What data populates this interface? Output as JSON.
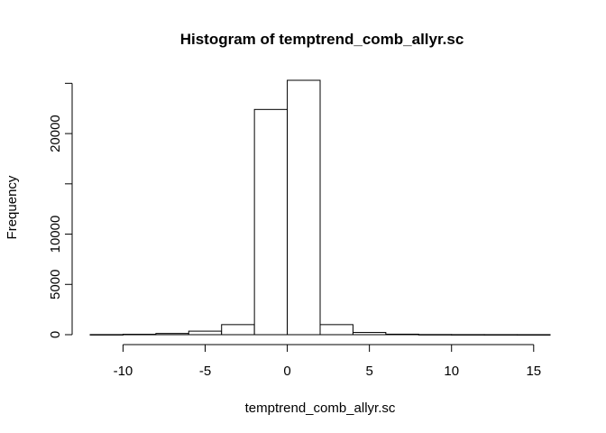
{
  "chart_data": {
    "type": "bar",
    "title": "Histogram of temptrend_comb_allyr.sc",
    "xlabel": "temptrend_comb_allyr.sc",
    "ylabel": "Frequency",
    "bin_edges": [
      -12,
      -10,
      -8,
      -6,
      -4,
      -2,
      0,
      2,
      4,
      6,
      8,
      10,
      12,
      14,
      16
    ],
    "values": [
      10,
      40,
      120,
      350,
      1000,
      22400,
      25300,
      1000,
      220,
      50,
      15,
      8,
      5,
      3
    ],
    "xlim": [
      -12,
      16
    ],
    "ylim": [
      0,
      25300
    ],
    "x_ticks": [
      -10,
      -5,
      0,
      5,
      10,
      15
    ],
    "x_tick_labels": [
      "-10",
      "-5",
      "0",
      "5",
      "10",
      "15"
    ],
    "y_ticks": [
      0,
      5000,
      10000,
      15000,
      20000,
      25000
    ],
    "y_tick_labels": [
      "0",
      "5000",
      "10000",
      "",
      "20000",
      ""
    ],
    "grid": false
  }
}
